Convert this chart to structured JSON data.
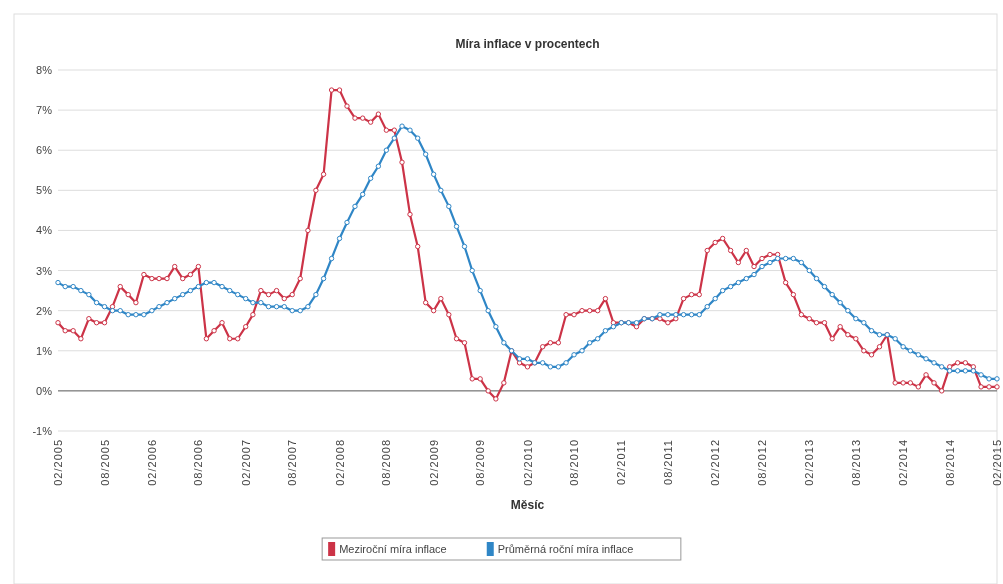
{
  "chart_data": {
    "type": "line",
    "title": "Míra inflace v procentech",
    "xlabel": "Měsíc",
    "x": [
      "2005-02",
      "2005-03",
      "2005-04",
      "2005-05",
      "2005-06",
      "2005-07",
      "2005-08",
      "2005-09",
      "2005-10",
      "2005-11",
      "2005-12",
      "2006-01",
      "2006-02",
      "2006-03",
      "2006-04",
      "2006-05",
      "2006-06",
      "2006-07",
      "2006-08",
      "2006-09",
      "2006-10",
      "2006-11",
      "2006-12",
      "2007-01",
      "2007-02",
      "2007-03",
      "2007-04",
      "2007-05",
      "2007-06",
      "2007-07",
      "2007-08",
      "2007-09",
      "2007-10",
      "2007-11",
      "2007-12",
      "2008-01",
      "2008-02",
      "2008-03",
      "2008-04",
      "2008-05",
      "2008-06",
      "2008-07",
      "2008-08",
      "2008-09",
      "2008-10",
      "2008-11",
      "2008-12",
      "2009-01",
      "2009-02",
      "2009-03",
      "2009-04",
      "2009-05",
      "2009-06",
      "2009-07",
      "2009-08",
      "2009-09",
      "2009-10",
      "2009-11",
      "2009-12",
      "2010-01",
      "2010-02",
      "2010-03",
      "2010-04",
      "2010-05",
      "2010-06",
      "2010-07",
      "2010-08",
      "2010-09",
      "2010-10",
      "2010-11",
      "2010-12",
      "2011-01",
      "2011-02",
      "2011-03",
      "2011-04",
      "2011-05",
      "2011-06",
      "2011-07",
      "2011-08",
      "2011-09",
      "2011-10",
      "2011-11",
      "2011-12",
      "2012-01",
      "2012-02",
      "2012-03",
      "2012-04",
      "2012-05",
      "2012-06",
      "2012-07",
      "2012-08",
      "2012-09",
      "2012-10",
      "2012-11",
      "2012-12",
      "2013-01",
      "2013-02",
      "2013-03",
      "2013-04",
      "2013-05",
      "2013-06",
      "2013-07",
      "2013-08",
      "2013-09",
      "2013-10",
      "2013-11",
      "2013-12",
      "2014-01",
      "2014-02",
      "2014-03",
      "2014-04",
      "2014-05",
      "2014-06",
      "2014-07",
      "2014-08",
      "2014-09",
      "2014-10",
      "2014-11",
      "2014-12",
      "2015-01",
      "2015-02"
    ],
    "series": [
      {
        "name": "Meziroční míra inflace",
        "color": "#cc3347",
        "values": [
          1.7,
          1.5,
          1.5,
          1.3,
          1.8,
          1.7,
          1.7,
          2.1,
          2.6,
          2.4,
          2.2,
          2.9,
          2.8,
          2.8,
          2.8,
          3.1,
          2.8,
          2.9,
          3.1,
          1.3,
          1.5,
          1.7,
          1.3,
          1.3,
          1.6,
          1.9,
          2.5,
          2.4,
          2.5,
          2.3,
          2.4,
          2.8,
          4.0,
          5.0,
          5.4,
          7.5,
          7.5,
          7.1,
          6.8,
          6.8,
          6.7,
          6.9,
          6.5,
          6.5,
          5.7,
          4.4,
          3.6,
          2.2,
          2.0,
          2.3,
          1.9,
          1.3,
          1.2,
          0.3,
          0.3,
          0.0,
          -0.2,
          0.2,
          1.0,
          0.7,
          0.6,
          0.7,
          1.1,
          1.2,
          1.2,
          1.9,
          1.9,
          2.0,
          2.0,
          2.0,
          2.3,
          1.7,
          1.7,
          1.7,
          1.6,
          1.8,
          1.8,
          1.8,
          1.7,
          1.8,
          2.3,
          2.4,
          2.4,
          3.5,
          3.7,
          3.8,
          3.5,
          3.2,
          3.5,
          3.1,
          3.3,
          3.4,
          3.4,
          2.7,
          2.4,
          1.9,
          1.8,
          1.7,
          1.7,
          1.3,
          1.6,
          1.4,
          1.3,
          1.0,
          0.9,
          1.1,
          1.4,
          0.2,
          0.2,
          0.2,
          0.1,
          0.4,
          0.2,
          0.0,
          0.6,
          0.7,
          0.7,
          0.6,
          0.1,
          0.1,
          0.1
        ]
      },
      {
        "name": "Průměrná roční míra inflace",
        "color": "#2f86c6",
        "values": [
          2.7,
          2.6,
          2.6,
          2.5,
          2.4,
          2.2,
          2.1,
          2.0,
          2.0,
          1.9,
          1.9,
          1.9,
          2.0,
          2.1,
          2.2,
          2.3,
          2.4,
          2.5,
          2.6,
          2.7,
          2.7,
          2.6,
          2.5,
          2.4,
          2.3,
          2.2,
          2.2,
          2.1,
          2.1,
          2.1,
          2.0,
          2.0,
          2.1,
          2.4,
          2.8,
          3.3,
          3.8,
          4.2,
          4.6,
          4.9,
          5.3,
          5.6,
          6.0,
          6.3,
          6.6,
          6.5,
          6.3,
          5.9,
          5.4,
          5.0,
          4.6,
          4.1,
          3.6,
          3.0,
          2.5,
          2.0,
          1.6,
          1.2,
          1.0,
          0.8,
          0.8,
          0.7,
          0.7,
          0.6,
          0.6,
          0.7,
          0.9,
          1.0,
          1.2,
          1.3,
          1.5,
          1.6,
          1.7,
          1.7,
          1.7,
          1.8,
          1.8,
          1.9,
          1.9,
          1.9,
          1.9,
          1.9,
          1.9,
          2.1,
          2.3,
          2.5,
          2.6,
          2.7,
          2.8,
          2.9,
          3.1,
          3.2,
          3.3,
          3.3,
          3.3,
          3.2,
          3.0,
          2.8,
          2.6,
          2.4,
          2.2,
          2.0,
          1.8,
          1.7,
          1.5,
          1.4,
          1.4,
          1.3,
          1.1,
          1.0,
          0.9,
          0.8,
          0.7,
          0.6,
          0.5,
          0.5,
          0.5,
          0.5,
          0.4,
          0.3,
          0.3
        ]
      }
    ],
    "xlim": [
      "2005-02",
      "2015-02"
    ],
    "xticks": [
      {
        "value": "2005-02",
        "label": "02/2005"
      },
      {
        "value": "2005-08",
        "label": "08/2005"
      },
      {
        "value": "2006-02",
        "label": "02/2006"
      },
      {
        "value": "2006-08",
        "label": "08/2006"
      },
      {
        "value": "2007-02",
        "label": "02/2007"
      },
      {
        "value": "2007-08",
        "label": "08/2007"
      },
      {
        "value": "2008-02",
        "label": "02/2008"
      },
      {
        "value": "2008-08",
        "label": "08/2008"
      },
      {
        "value": "2009-02",
        "label": "02/2009"
      },
      {
        "value": "2009-08",
        "label": "08/2009"
      },
      {
        "value": "2010-02",
        "label": "02/2010"
      },
      {
        "value": "2010-08",
        "label": "08/2010"
      },
      {
        "value": "2011-02",
        "label": "02/2011"
      },
      {
        "value": "2011-08",
        "label": "08/2011"
      },
      {
        "value": "2012-02",
        "label": "02/2012"
      },
      {
        "value": "2012-08",
        "label": "08/2012"
      },
      {
        "value": "2013-02",
        "label": "02/2013"
      },
      {
        "value": "2013-08",
        "label": "08/2013"
      },
      {
        "value": "2014-02",
        "label": "02/2014"
      },
      {
        "value": "2014-08",
        "label": "08/2014"
      },
      {
        "value": "2015-02",
        "label": "02/2015"
      }
    ],
    "ylim": [
      -1,
      8
    ],
    "yticks": [
      {
        "value": -1,
        "label": "-1%"
      },
      {
        "value": 0,
        "label": "0%"
      },
      {
        "value": 1,
        "label": "1%"
      },
      {
        "value": 2,
        "label": "2%"
      },
      {
        "value": 3,
        "label": "3%"
      },
      {
        "value": 4,
        "label": "4%"
      },
      {
        "value": 5,
        "label": "5%"
      },
      {
        "value": 6,
        "label": "6%"
      },
      {
        "value": 7,
        "label": "7%"
      },
      {
        "value": 8,
        "label": "8%"
      }
    ],
    "grid": "y",
    "legend": "bottom",
    "marker": "circle",
    "line_style": "solid"
  }
}
